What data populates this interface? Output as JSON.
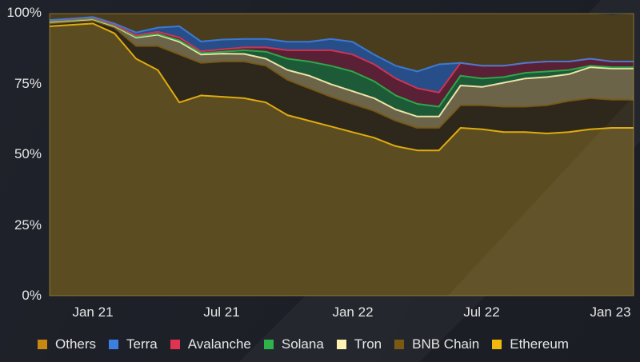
{
  "chart_data": {
    "type": "area",
    "stacked": true,
    "percent": true,
    "title": "",
    "xlabel": "",
    "ylabel": "",
    "ylim": [
      0,
      100
    ],
    "y_ticks": [
      "100%",
      "75%",
      "50%",
      "25%",
      "0%"
    ],
    "x_ticks": [
      "Jan 21",
      "Jul 21",
      "Jan 22",
      "Jul 22",
      "Jan 23"
    ],
    "legend_position": "bottom",
    "grid": false,
    "x": [
      "Nov 20",
      "Dec 20",
      "Jan 21",
      "Feb 21",
      "Mar 21",
      "Apr 21",
      "May 21",
      "Jun 21",
      "Jul 21",
      "Aug 21",
      "Sep 21",
      "Oct 21",
      "Nov 21",
      "Dec 21",
      "Jan 22",
      "Feb 22",
      "Mar 22",
      "Apr 22",
      "May 22",
      "Jun 22",
      "Jul 22",
      "Aug 22",
      "Sep 22",
      "Oct 22",
      "Nov 22",
      "Dec 22",
      "Jan 23",
      "Feb 23"
    ],
    "series": [
      {
        "name": "Ethereum",
        "color": "#f0b90b",
        "values": [
          95.5,
          96,
          96.5,
          93,
          84,
          80,
          68.5,
          71,
          70.5,
          70,
          68.5,
          64,
          62,
          60,
          58,
          56,
          53,
          51.5,
          51.5,
          59.5,
          59,
          58,
          58,
          57.5,
          58,
          59,
          59.5,
          59.5
        ]
      },
      {
        "name": "BNB Chain",
        "color": "#7a5a12",
        "values": [
          1.0,
          1.0,
          1.0,
          2.0,
          4.5,
          8.5,
          17,
          11.5,
          12.5,
          13,
          13,
          12.5,
          11.5,
          10.5,
          10,
          9.5,
          9,
          8,
          8,
          8,
          8.5,
          9,
          9,
          10,
          11,
          11,
          10,
          10
        ]
      },
      {
        "name": "Tron",
        "color": "#fff2b3",
        "values": [
          0.5,
          0.5,
          0.5,
          0.5,
          3,
          4,
          4.5,
          3,
          2.8,
          2.7,
          2.5,
          3.5,
          4.5,
          4.5,
          4.5,
          4.5,
          4,
          4,
          4,
          7,
          6.5,
          8.5,
          10,
          10,
          9.5,
          11,
          11,
          11
        ]
      },
      {
        "name": "Solana",
        "color": "#2db34a",
        "values": [
          0.2,
          0.2,
          0.2,
          0.2,
          0.3,
          0.3,
          0.5,
          0.5,
          0.7,
          1.3,
          2.5,
          4,
          5,
          6.5,
          7,
          6,
          5,
          4.5,
          3.5,
          3.5,
          3,
          2,
          2,
          2,
          1.5,
          0.5,
          0.5,
          0.5
        ]
      },
      {
        "name": "Avalanche",
        "color": "#e03350",
        "values": [
          0.3,
          0.3,
          0.3,
          0.3,
          0.5,
          0.7,
          1,
          0.6,
          0.8,
          1,
          1.5,
          3,
          4,
          5.5,
          6,
          6,
          6,
          5.5,
          5,
          4.5,
          4.5,
          4,
          3.5,
          3.5,
          3,
          2.5,
          2,
          2
        ]
      },
      {
        "name": "Terra",
        "color": "#3d7fe0",
        "values": [
          0.2,
          0.2,
          0.3,
          0.5,
          1,
          1.5,
          4,
          3.5,
          3.5,
          3,
          3,
          3,
          3,
          4,
          4.5,
          3.5,
          4.5,
          6,
          10,
          0,
          0,
          0,
          0,
          0,
          0,
          0,
          0,
          0
        ]
      },
      {
        "name": "Others",
        "color": "#c68a12",
        "values": [
          2.3,
          1.8,
          1.2,
          3.5,
          6.7,
          5,
          4.5,
          9.9,
          9.2,
          9,
          9,
          10,
          10,
          9,
          10,
          14.5,
          18.5,
          20.5,
          18,
          17.5,
          18.5,
          18.5,
          17.5,
          17,
          17,
          16,
          16.5,
          17
        ]
      }
    ]
  },
  "axis": {
    "y_labels": [
      "100%",
      "75%",
      "50%",
      "25%",
      "0%"
    ],
    "x_labels": [
      "Jan 21",
      "Jul 21",
      "Jan 22",
      "Jul 22",
      "Jan 23"
    ]
  },
  "legend": {
    "items": [
      {
        "label": "Others",
        "color": "#c68a12"
      },
      {
        "label": "Terra",
        "color": "#3d7fe0"
      },
      {
        "label": "Avalanche",
        "color": "#e03350"
      },
      {
        "label": "Solana",
        "color": "#2db34a"
      },
      {
        "label": "Tron",
        "color": "#fff2b3"
      },
      {
        "label": "BNB Chain",
        "color": "#7a5a12"
      },
      {
        "label": "Ethereum",
        "color": "#f0b90b"
      }
    ]
  }
}
